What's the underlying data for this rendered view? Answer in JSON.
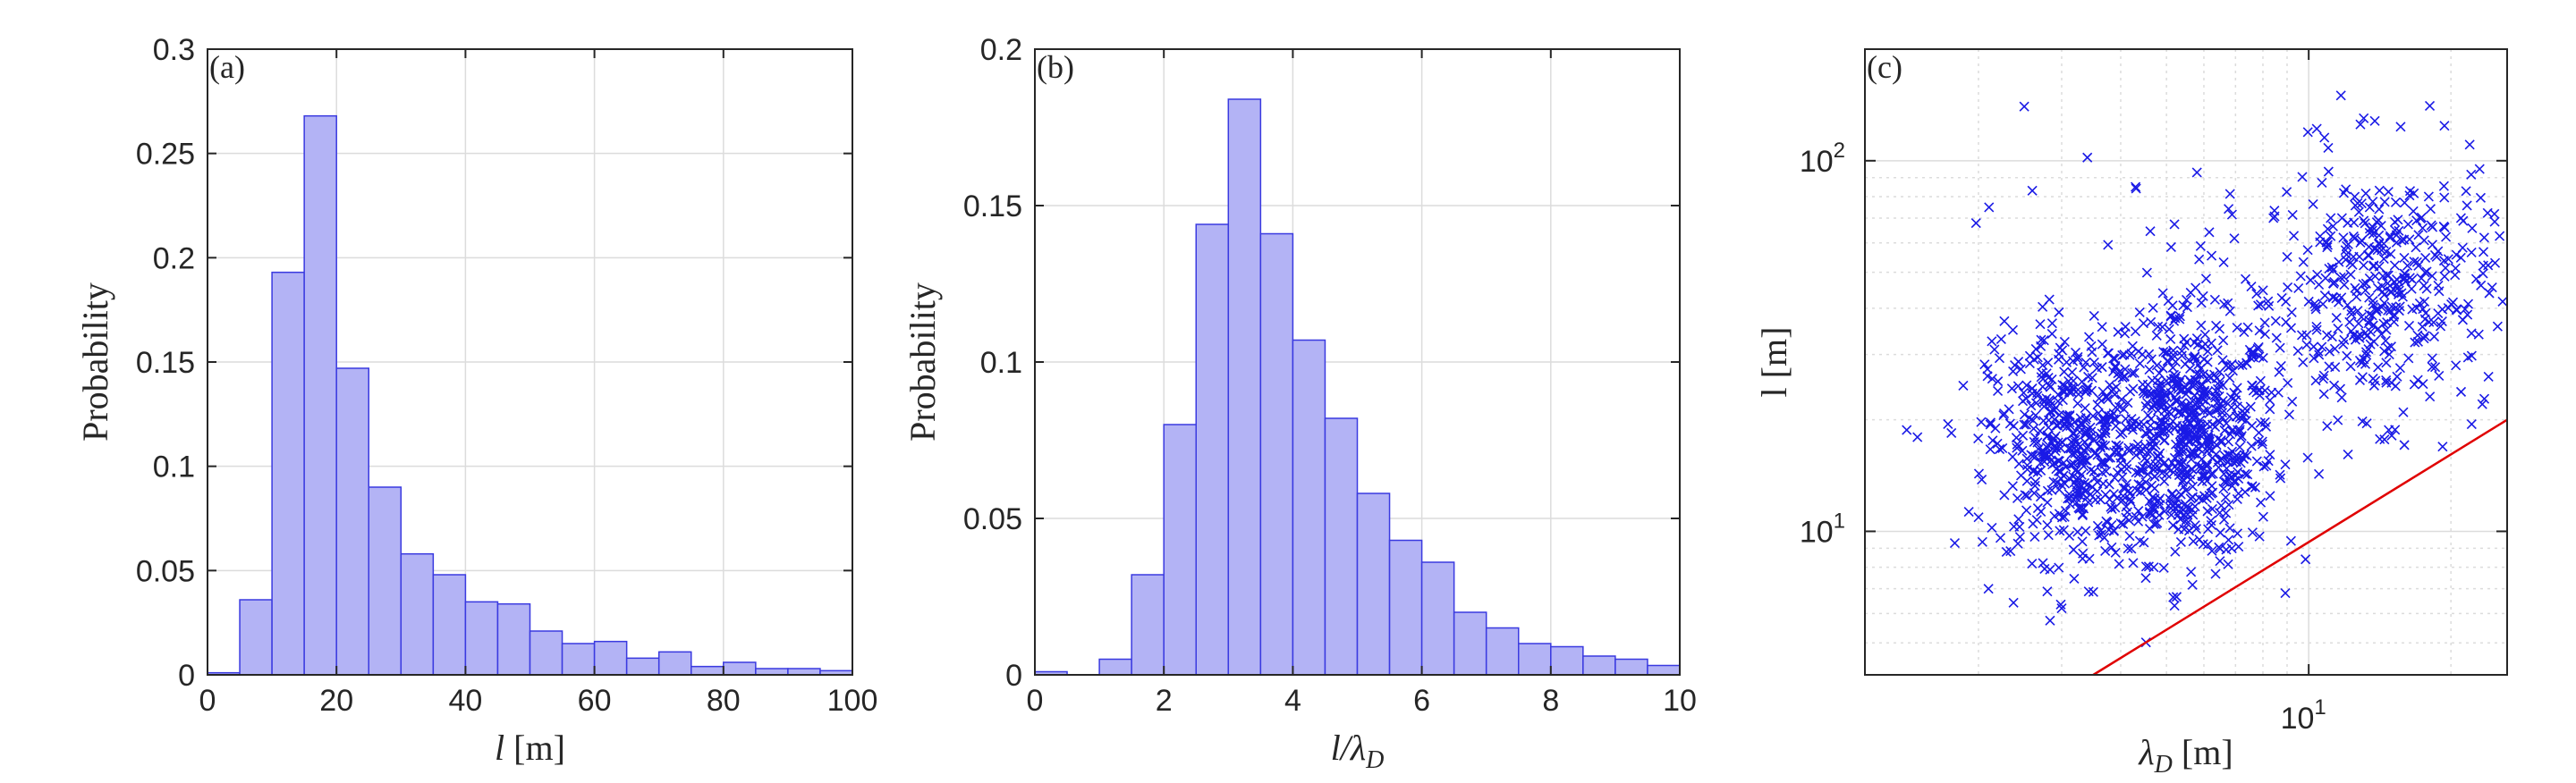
{
  "chart_data": [
    {
      "type": "bar",
      "panel_label": "(a)",
      "xlabel": "l [m]",
      "ylabel": "Probability",
      "xlim": [
        0,
        100
      ],
      "ylim": [
        0,
        0.3
      ],
      "xticks": [
        "0",
        "20",
        "40",
        "60",
        "80",
        "100"
      ],
      "yticks": [
        "0",
        "0.05",
        "0.1",
        "0.15",
        "0.2",
        "0.25",
        "0.3"
      ],
      "bin_edges": [
        0,
        5,
        10,
        15,
        20,
        25,
        30,
        35,
        40,
        45,
        50,
        55,
        60,
        65,
        70,
        75,
        80,
        85,
        90,
        95,
        100
      ],
      "values": [
        0.001,
        0.036,
        0.193,
        0.268,
        0.147,
        0.09,
        0.058,
        0.048,
        0.035,
        0.034,
        0.021,
        0.015,
        0.016,
        0.008,
        0.011,
        0.004,
        0.006,
        0.003,
        0.003,
        0.002
      ],
      "grid": true,
      "colors": {
        "face": "#b3b3f5",
        "edge": "#3a3ae0"
      }
    },
    {
      "type": "bar",
      "panel_label": "(b)",
      "xlabel": "l/λD",
      "ylabel": "Probability",
      "xlim": [
        0,
        10
      ],
      "ylim": [
        0,
        0.2
      ],
      "xticks": [
        "0",
        "2",
        "4",
        "6",
        "8",
        "10"
      ],
      "yticks": [
        "0",
        "0.05",
        "0.1",
        "0.15",
        "0.2"
      ],
      "bin_edges": [
        0,
        0.5,
        1,
        1.5,
        2,
        2.5,
        3,
        3.5,
        4,
        4.5,
        5,
        5.5,
        6,
        6.5,
        7,
        7.5,
        8,
        8.5,
        9,
        9.5,
        10
      ],
      "values": [
        0.001,
        0,
        0.005,
        0.032,
        0.08,
        0.144,
        0.184,
        0.141,
        0.107,
        0.082,
        0.058,
        0.043,
        0.036,
        0.02,
        0.015,
        0.01,
        0.009,
        0.006,
        0.005,
        0.003
      ],
      "grid": true,
      "colors": {
        "face": "#b3b3f5",
        "edge": "#3a3ae0"
      }
    },
    {
      "type": "scatter",
      "panel_label": "(c)",
      "xlabel": "λD [m]",
      "ylabel": "l [m]",
      "xscale": "log",
      "yscale": "log",
      "xlim": [
        1.15,
        26.3
      ],
      "ylim": [
        4.1,
        200
      ],
      "yticks": [
        "10^1",
        "10^2"
      ],
      "xticks": [
        "10^1"
      ],
      "marker": "x",
      "grid": true,
      "reference_line": {
        "label": "",
        "points": [
          [
            3.5,
            4.1
          ],
          [
            26.3,
            20.0
          ]
        ],
        "color": "#e00000"
      },
      "clusters": [
        {
          "count": 650,
          "x_center": 5.6,
          "x_spread_log10": 0.09,
          "y_center": 17.5,
          "y_spread_log10": 0.16
        },
        {
          "count": 480,
          "x_center": 3.1,
          "x_spread_log10": 0.085,
          "y_center": 17,
          "y_spread_log10": 0.15
        },
        {
          "count": 380,
          "x_center": 14.5,
          "x_spread_log10": 0.11,
          "y_center": 45,
          "y_spread_log10": 0.17
        },
        {
          "count": 130,
          "x_center": 6.5,
          "x_spread_log10": 0.2,
          "y_center": 35,
          "y_spread_log10": 0.18
        }
      ],
      "outliers": [
        [
          2.5,
          140
        ],
        [
          3.4,
          102
        ],
        [
          5.8,
          93
        ],
        [
          11.7,
          150
        ],
        [
          10.4,
          122
        ],
        [
          13.8,
          128
        ],
        [
          2.6,
          83
        ],
        [
          4.3,
          85
        ],
        [
          5.2,
          6.3
        ],
        [
          3.0,
          6.2
        ],
        [
          2.1,
          7.0
        ],
        [
          4.7,
          8.0
        ],
        [
          23.0,
          95
        ],
        [
          24.8,
          53
        ]
      ],
      "colors": {
        "marker": "#1a1ae6"
      }
    }
  ],
  "glyphs": {
    "lambda": "λ",
    "sub_D": "D"
  }
}
